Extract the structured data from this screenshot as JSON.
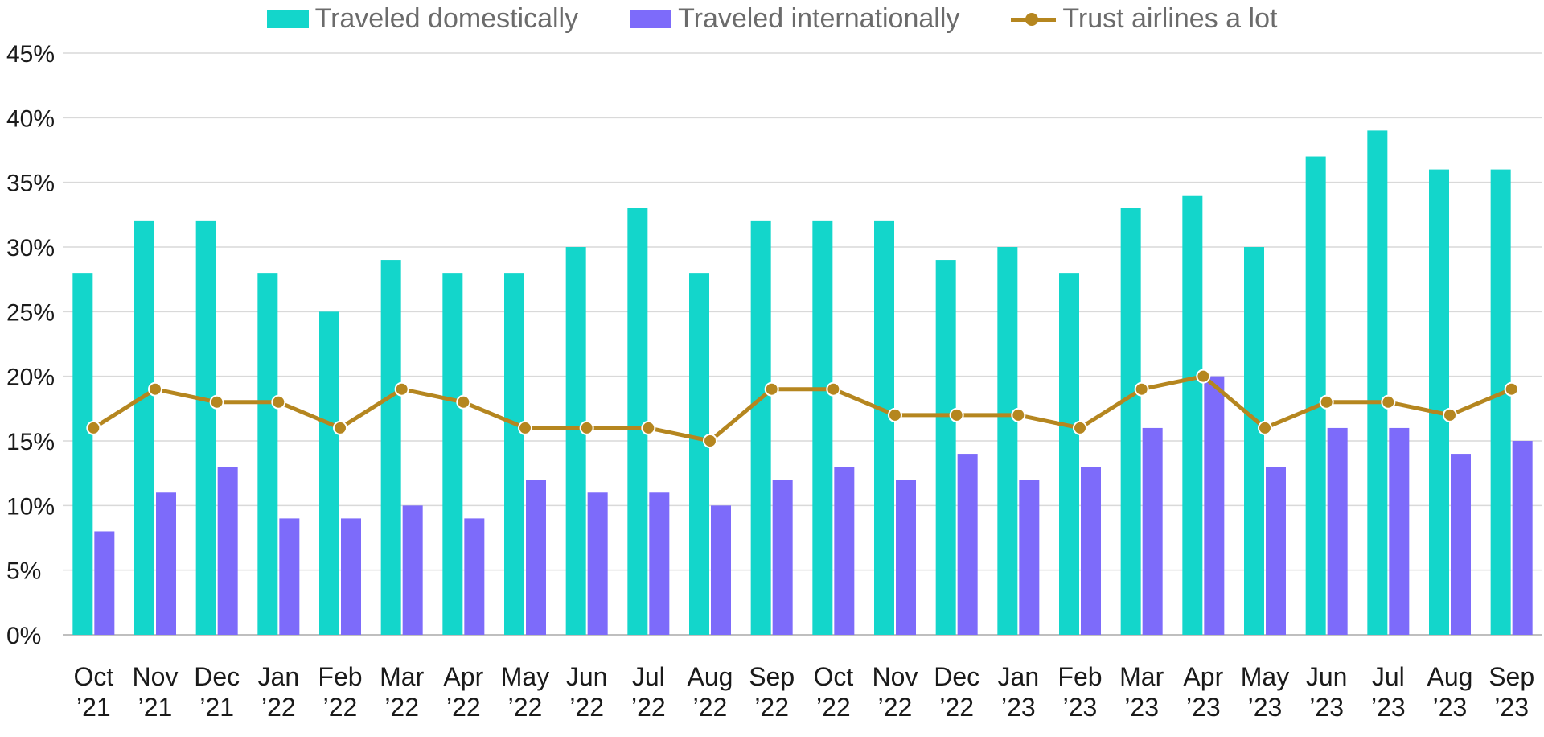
{
  "colors": {
    "domestic": "#13D6CB",
    "international": "#7D6BFA",
    "trust": "#B5861F",
    "grid": "#D9D9D9",
    "axis_text": "#1A1A1A",
    "legend_text": "#6B6B6B"
  },
  "chart_data": {
    "type": "bar",
    "categories": [
      "Oct ’21",
      "Nov ’21",
      "Dec ’21",
      "Jan ’22",
      "Feb ’22",
      "Mar ’22",
      "Apr ’22",
      "May ’22",
      "Jun ’22",
      "Jul ’22",
      "Aug ’22",
      "Sep ’22",
      "Oct ’22",
      "Nov ’22",
      "Dec ’22",
      "Jan ’23",
      "Feb ’23",
      "Mar ’23",
      "Apr ’23",
      "May ’23",
      "Jun ’23",
      "Jul ’23",
      "Aug ’23",
      "Sep ’23"
    ],
    "category_lines": [
      [
        "Oct",
        "’21"
      ],
      [
        "Nov",
        "’21"
      ],
      [
        "Dec",
        "’21"
      ],
      [
        "Jan",
        "’22"
      ],
      [
        "Feb",
        "’22"
      ],
      [
        "Mar",
        "’22"
      ],
      [
        "Apr",
        "’22"
      ],
      [
        "May",
        "’22"
      ],
      [
        "Jun",
        "’22"
      ],
      [
        "Jul",
        "’22"
      ],
      [
        "Aug",
        "’22"
      ],
      [
        "Sep",
        "’22"
      ],
      [
        "Oct",
        "’22"
      ],
      [
        "Nov",
        "’22"
      ],
      [
        "Dec",
        "’22"
      ],
      [
        "Jan",
        "’23"
      ],
      [
        "Feb",
        "’23"
      ],
      [
        "Mar",
        "’23"
      ],
      [
        "Apr",
        "’23"
      ],
      [
        "May",
        "’23"
      ],
      [
        "Jun",
        "’23"
      ],
      [
        "Jul",
        "’23"
      ],
      [
        "Aug",
        "’23"
      ],
      [
        "Sep",
        "’23"
      ]
    ],
    "series": [
      {
        "name": "Traveled domestically",
        "kind": "bar",
        "values": [
          28,
          32,
          32,
          28,
          25,
          29,
          28,
          28,
          30,
          33,
          28,
          32,
          32,
          32,
          29,
          30,
          28,
          33,
          34,
          30,
          37,
          39,
          36,
          36
        ]
      },
      {
        "name": "Traveled internationally",
        "kind": "bar",
        "values": [
          8,
          11,
          13,
          9,
          9,
          10,
          9,
          12,
          11,
          11,
          10,
          12,
          13,
          12,
          14,
          12,
          13,
          16,
          20,
          13,
          16,
          16,
          14,
          15
        ]
      },
      {
        "name": "Trust airlines a lot",
        "kind": "line",
        "values": [
          16,
          19,
          18,
          18,
          16,
          19,
          18,
          16,
          16,
          16,
          15,
          19,
          19,
          17,
          17,
          17,
          16,
          19,
          20,
          16,
          18,
          18,
          17,
          19
        ]
      }
    ],
    "ylim": [
      0,
      45
    ],
    "yticks": [
      0,
      5,
      10,
      15,
      20,
      25,
      30,
      35,
      40,
      45
    ],
    "ytick_labels": [
      "0%",
      "5%",
      "10%",
      "15%",
      "20%",
      "25%",
      "30%",
      "35%",
      "40%",
      "45%"
    ],
    "grid": true,
    "legend_position": "top-center",
    "title": "",
    "xlabel": "",
    "ylabel": ""
  }
}
